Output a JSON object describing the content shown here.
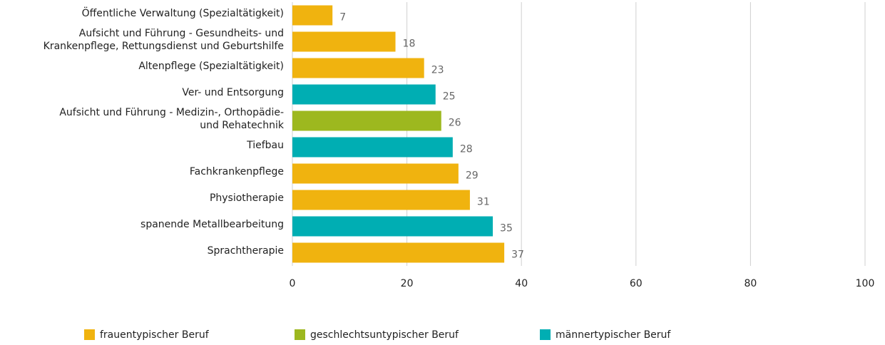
{
  "chart_data": {
    "type": "bar",
    "orientation": "horizontal",
    "categories": [
      "Öffentliche Verwaltung (Spezialtätigkeit)",
      "Aufsicht und Führung - Gesundheits- und\nKrankenpflege, Rettungsdienst und Geburtshilfe",
      "Altenpflege (Spezialtätigkeit)",
      "Ver- und Entsorgung",
      "Aufsicht und Führung - Medizin-, Orthopädie-\nund Rehatechnik",
      "Tiefbau",
      "Fachkrankenpflege",
      "Physiotherapie",
      "spanende Metallbearbeitung",
      "Sprachtherapie"
    ],
    "series": [
      {
        "name": "frauentypischer Beruf",
        "color": "#f0b30f",
        "values": [
          7,
          18,
          23,
          null,
          null,
          null,
          29,
          31,
          null,
          37
        ]
      },
      {
        "name": "geschlechtsuntypischer Beruf",
        "color": "#9db81f",
        "values": [
          null,
          null,
          null,
          null,
          26,
          null,
          null,
          null,
          null,
          null
        ]
      },
      {
        "name": "männertypischer Beruf",
        "color": "#00aeb3",
        "values": [
          null,
          null,
          null,
          25,
          null,
          28,
          null,
          null,
          35,
          null
        ]
      }
    ],
    "xlim": [
      0,
      100
    ],
    "xticks": [
      0,
      20,
      40,
      60,
      80,
      100
    ],
    "grid": true,
    "legend": "bottom"
  }
}
